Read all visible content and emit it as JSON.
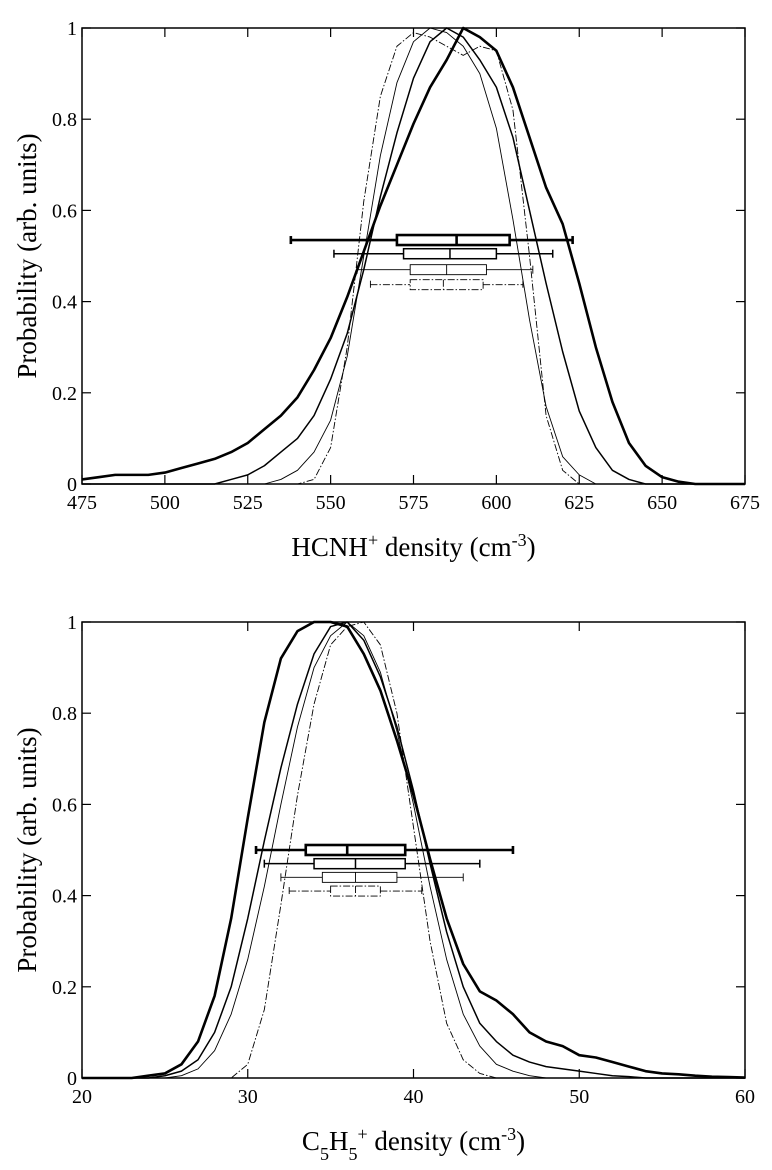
{
  "chart_data": [
    {
      "type": "line",
      "ylabel": "Probability (arb. units)",
      "xlabel_parts": [
        {
          "text": "HCNH"
        },
        {
          "text": "+",
          "script": "sup"
        },
        {
          "text": " density  (cm"
        },
        {
          "text": "-3",
          "script": "sup"
        },
        {
          "text": ")"
        }
      ],
      "xlim": [
        475,
        675
      ],
      "xticks": [
        475,
        500,
        525,
        550,
        575,
        600,
        625,
        650,
        675
      ],
      "ylim": [
        0,
        1
      ],
      "yticks": [
        0,
        0.2,
        0.4,
        0.6,
        0.8,
        1
      ],
      "x": [
        475,
        480,
        485,
        490,
        495,
        500,
        505,
        510,
        515,
        520,
        525,
        530,
        535,
        540,
        545,
        550,
        555,
        560,
        565,
        570,
        575,
        580,
        585,
        590,
        595,
        600,
        605,
        610,
        615,
        620,
        625,
        630,
        635,
        640,
        645,
        650,
        655,
        660,
        665,
        670,
        675
      ],
      "series": [
        {
          "style": "thick",
          "color": "#000000",
          "values": [
            0.01,
            0.015,
            0.02,
            0.02,
            0.02,
            0.025,
            0.035,
            0.045,
            0.055,
            0.07,
            0.09,
            0.12,
            0.15,
            0.19,
            0.25,
            0.32,
            0.41,
            0.51,
            0.61,
            0.7,
            0.79,
            0.87,
            0.93,
            1.0,
            0.98,
            0.95,
            0.87,
            0.76,
            0.65,
            0.57,
            0.44,
            0.3,
            0.18,
            0.09,
            0.04,
            0.015,
            0.005,
            0,
            0,
            0,
            0
          ]
        },
        {
          "style": "medium",
          "color": "#000000",
          "values": [
            0,
            0,
            0,
            0,
            0,
            0,
            0,
            0,
            0,
            0.01,
            0.02,
            0.04,
            0.07,
            0.1,
            0.15,
            0.23,
            0.33,
            0.47,
            0.63,
            0.77,
            0.89,
            0.97,
            1.0,
            0.98,
            0.93,
            0.87,
            0.76,
            0.6,
            0.44,
            0.29,
            0.16,
            0.08,
            0.03,
            0.01,
            0,
            0,
            0,
            0,
            0,
            0,
            0
          ]
        },
        {
          "style": "thin",
          "color": "#000000",
          "values": [
            0,
            0,
            0,
            0,
            0,
            0,
            0,
            0,
            0,
            0,
            0,
            0,
            0.01,
            0.03,
            0.07,
            0.14,
            0.28,
            0.5,
            0.72,
            0.88,
            0.97,
            1.0,
            0.99,
            0.96,
            0.9,
            0.78,
            0.58,
            0.36,
            0.17,
            0.06,
            0.02,
            0,
            0,
            0,
            0,
            0,
            0,
            0,
            0,
            0,
            0
          ]
        },
        {
          "style": "dashdot",
          "color": "#000000",
          "values": [
            0,
            0,
            0,
            0,
            0,
            0,
            0,
            0,
            0,
            0,
            0,
            0,
            0,
            0,
            0.01,
            0.08,
            0.3,
            0.62,
            0.85,
            0.96,
            0.99,
            0.98,
            0.96,
            0.94,
            0.96,
            0.95,
            0.82,
            0.5,
            0.15,
            0.03,
            0,
            0,
            0,
            0,
            0,
            0,
            0,
            0,
            0,
            0,
            0
          ]
        }
      ],
      "boxes": [
        {
          "style": "thick",
          "y": 0.535,
          "whislo": 538,
          "q1": 570,
          "med": 588,
          "q3": 604,
          "whishi": 623
        },
        {
          "style": "medium",
          "y": 0.505,
          "whislo": 551,
          "q1": 572,
          "med": 586,
          "q3": 600,
          "whishi": 617
        },
        {
          "style": "thin",
          "y": 0.47,
          "whislo": 558,
          "q1": 574,
          "med": 585,
          "q3": 597,
          "whishi": 611
        },
        {
          "style": "dashdot",
          "y": 0.437,
          "whislo": 562,
          "q1": 574,
          "med": 584,
          "q3": 596,
          "whishi": 608
        }
      ]
    },
    {
      "type": "line",
      "ylabel": "Probability (arb. units)",
      "xlabel_parts": [
        {
          "text": "C"
        },
        {
          "text": "5",
          "script": "sub"
        },
        {
          "text": "H"
        },
        {
          "text": "5",
          "script": "sub"
        },
        {
          "text": "+",
          "script": "sup"
        },
        {
          "text": " density (cm"
        },
        {
          "text": "-3",
          "script": "sup"
        },
        {
          "text": ")"
        }
      ],
      "xlim": [
        20,
        60
      ],
      "xticks": [
        20,
        30,
        40,
        50,
        60
      ],
      "ylim": [
        0,
        1
      ],
      "yticks": [
        0,
        0.2,
        0.4,
        0.6,
        0.8,
        1
      ],
      "x": [
        20,
        21,
        22,
        23,
        24,
        25,
        26,
        27,
        28,
        29,
        30,
        31,
        32,
        33,
        34,
        35,
        36,
        37,
        38,
        39,
        40,
        41,
        42,
        43,
        44,
        45,
        46,
        47,
        48,
        49,
        50,
        51,
        52,
        53,
        54,
        55,
        56,
        57,
        58,
        59,
        60
      ],
      "series": [
        {
          "style": "thick",
          "color": "#000000",
          "values": [
            0,
            0,
            0,
            0,
            0.005,
            0.01,
            0.03,
            0.08,
            0.18,
            0.35,
            0.57,
            0.78,
            0.92,
            0.98,
            1.0,
            1.0,
            0.99,
            0.93,
            0.85,
            0.74,
            0.62,
            0.48,
            0.35,
            0.25,
            0.19,
            0.17,
            0.14,
            0.1,
            0.08,
            0.07,
            0.05,
            0.045,
            0.035,
            0.025,
            0.015,
            0.01,
            0.008,
            0.005,
            0.003,
            0.002,
            0.001
          ]
        },
        {
          "style": "medium",
          "color": "#000000",
          "values": [
            0,
            0,
            0,
            0,
            0,
            0.005,
            0.015,
            0.04,
            0.1,
            0.2,
            0.35,
            0.52,
            0.68,
            0.82,
            0.93,
            0.99,
            1.0,
            0.96,
            0.88,
            0.77,
            0.63,
            0.47,
            0.32,
            0.2,
            0.12,
            0.08,
            0.05,
            0.035,
            0.025,
            0.02,
            0.015,
            0.01,
            0.005,
            0.003,
            0,
            0,
            0,
            0,
            0,
            0,
            0
          ]
        },
        {
          "style": "thin",
          "color": "#000000",
          "values": [
            0,
            0,
            0,
            0,
            0,
            0,
            0.005,
            0.02,
            0.06,
            0.14,
            0.26,
            0.42,
            0.6,
            0.77,
            0.9,
            0.97,
            1.0,
            0.97,
            0.89,
            0.76,
            0.6,
            0.42,
            0.26,
            0.14,
            0.07,
            0.03,
            0.015,
            0.005,
            0,
            0,
            0,
            0,
            0,
            0,
            0,
            0,
            0,
            0,
            0,
            0,
            0
          ]
        },
        {
          "style": "dashdot",
          "color": "#000000",
          "values": [
            0,
            0,
            0,
            0,
            0,
            0,
            0,
            0,
            0,
            0,
            0.03,
            0.15,
            0.38,
            0.62,
            0.82,
            0.95,
            0.99,
            1.0,
            0.95,
            0.8,
            0.55,
            0.3,
            0.12,
            0.04,
            0.01,
            0,
            0,
            0,
            0,
            0,
            0,
            0,
            0,
            0,
            0,
            0,
            0,
            0,
            0,
            0,
            0
          ]
        }
      ],
      "boxes": [
        {
          "style": "thick",
          "y": 0.5,
          "whislo": 30.5,
          "q1": 33.5,
          "med": 36,
          "q3": 39.5,
          "whishi": 46
        },
        {
          "style": "medium",
          "y": 0.47,
          "whislo": 31,
          "q1": 34,
          "med": 36.5,
          "q3": 39.5,
          "whishi": 44
        },
        {
          "style": "thin",
          "y": 0.44,
          "whislo": 32,
          "q1": 34.5,
          "med": 36.5,
          "q3": 39,
          "whishi": 43
        },
        {
          "style": "dashdot",
          "y": 0.41,
          "whislo": 32.5,
          "q1": 35,
          "med": 36.5,
          "q3": 38,
          "whishi": 40.5
        }
      ]
    }
  ]
}
